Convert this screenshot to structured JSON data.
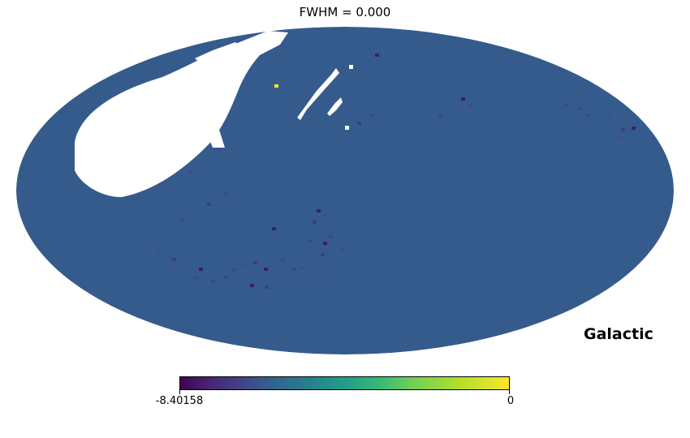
{
  "title": "FWHM = 0.000",
  "coord_system": "Galactic",
  "projection": "mollweide",
  "colormap": "viridis",
  "colorbar": {
    "min_label": "-8.40158",
    "max_label": "0",
    "min": -8.40158,
    "max": 0
  },
  "colors": {
    "background_field": "#355b8c",
    "mask": "#ffffff",
    "dark_pixel": "#3b1c6e",
    "bright_pixel": "#fde725"
  }
}
